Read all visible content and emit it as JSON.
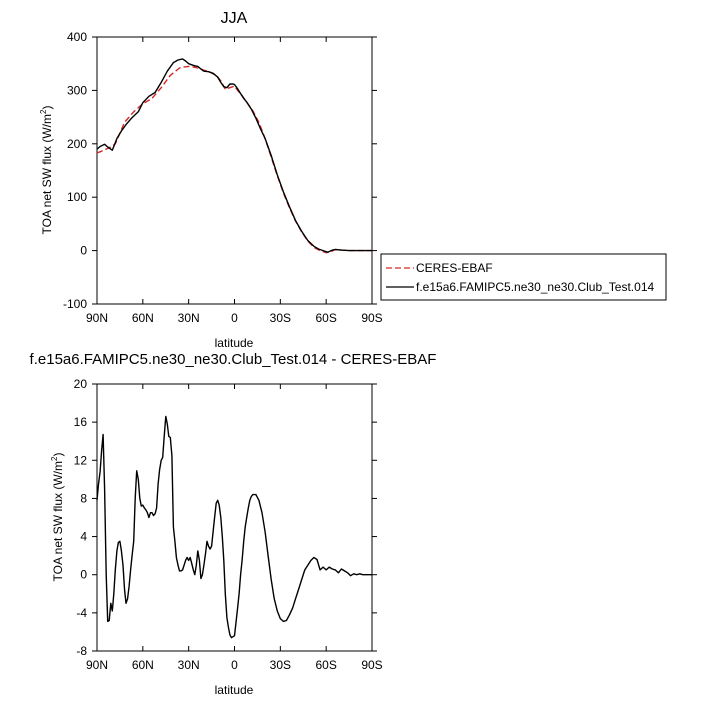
{
  "chart_data": [
    {
      "type": "line",
      "title": "JJA",
      "xlabel": "latitude",
      "ylabel_main": "TOA net SW flux (W/m",
      "ylabel_sup": "2",
      "ylabel_close": ")",
      "xlim": [
        90,
        -90
      ],
      "ylim": [
        -100,
        400
      ],
      "x_tick_values": [
        90,
        60,
        30,
        0,
        -30,
        -60,
        -90
      ],
      "x_tick_labels": [
        "90N",
        "60N",
        "30N",
        "0",
        "30S",
        "60S",
        "90S"
      ],
      "y_tick_values": [
        -100,
        0,
        100,
        200,
        300,
        400
      ],
      "y_tick_labels": [
        "-100",
        "0",
        "100",
        "200",
        "300",
        "400"
      ],
      "grid": false,
      "legend_position": "right",
      "series": [
        {
          "name": "CERES-EBAF",
          "color": "#d62728",
          "dash": true,
          "x": [
            90,
            88,
            84,
            81,
            78,
            72,
            66,
            60,
            54,
            48,
            42,
            36,
            33,
            30,
            27,
            24,
            20,
            16,
            12,
            9,
            6,
            3,
            0,
            -2,
            -5,
            -8,
            -12,
            -16,
            -20,
            -24,
            -28,
            -32,
            -36,
            -40,
            -44,
            -48,
            -52,
            -56,
            -60,
            -63,
            -66,
            -70,
            -75,
            -80,
            -85,
            -90
          ],
          "y": [
            183,
            185,
            190,
            194,
            200,
            240,
            260,
            275,
            285,
            305,
            328,
            342,
            344,
            345,
            344,
            342,
            338,
            334,
            328,
            318,
            302,
            305,
            308,
            300,
            290,
            278,
            262,
            240,
            210,
            175,
            140,
            108,
            80,
            55,
            35,
            18,
            6,
            0,
            -4,
            -2,
            2,
            1,
            0,
            0,
            0,
            0
          ]
        },
        {
          "name": "f.e15a6.FAMIPC5.ne30_ne30.Club_Test.014",
          "color": "#000000",
          "dash": false,
          "x": [
            90,
            88,
            85,
            83,
            80,
            77,
            74,
            71,
            67,
            63,
            60,
            56,
            52,
            48,
            44,
            40,
            37,
            34,
            32,
            30,
            28,
            26,
            24,
            22,
            20,
            17,
            14,
            11,
            9,
            7,
            5,
            3,
            1,
            0,
            -2,
            -4,
            -6,
            -8,
            -11,
            -14,
            -17,
            -20,
            -24,
            -28,
            -32,
            -36,
            -40,
            -44,
            -48,
            -52,
            -55,
            -58,
            -61,
            -64,
            -66,
            -70,
            -75,
            -80,
            -85,
            -90
          ],
          "y": [
            190,
            195,
            199,
            194,
            188,
            210,
            224,
            236,
            249,
            260,
            277,
            289,
            296,
            315,
            336,
            352,
            357,
            359,
            355,
            350,
            348,
            346,
            345,
            340,
            336,
            335,
            332,
            325,
            315,
            307,
            305,
            312,
            312,
            311,
            303,
            294,
            285,
            278,
            265,
            248,
            228,
            210,
            178,
            142,
            110,
            82,
            56,
            36,
            19,
            8,
            3,
            0,
            -3,
            1,
            2,
            1,
            0,
            0,
            0,
            0
          ]
        }
      ]
    },
    {
      "type": "line",
      "title": "f.e15a6.FAMIPC5.ne30_ne30.Club_Test.014 - CERES-EBAF",
      "xlabel": "latitude",
      "ylabel_main": "TOA net SW flux (W/m",
      "ylabel_sup": "2",
      "ylabel_close": ")",
      "xlim": [
        90,
        -90
      ],
      "ylim": [
        -8,
        20
      ],
      "x_tick_values": [
        90,
        60,
        30,
        0,
        -30,
        -60,
        -90
      ],
      "x_tick_labels": [
        "90N",
        "60N",
        "30N",
        "0",
        "30S",
        "60S",
        "90S"
      ],
      "y_tick_values": [
        -8,
        -4,
        0,
        4,
        8,
        12,
        16,
        20
      ],
      "y_tick_labels": [
        "-8",
        "-4",
        "0",
        "4",
        "8",
        "12",
        "16",
        "20"
      ],
      "grid": false,
      "series": [
        {
          "name": "",
          "color": "#000000",
          "dash": false,
          "x": [
            90,
            89,
            88,
            87,
            86,
            85,
            84,
            83,
            82,
            81,
            80,
            79,
            78,
            77,
            76,
            75,
            74,
            73,
            72,
            71,
            70,
            69,
            68,
            67,
            66,
            65,
            64,
            63,
            62,
            61,
            60,
            59,
            58,
            57,
            56,
            55,
            54,
            53,
            52,
            51,
            50,
            49,
            48,
            47,
            46,
            45,
            44,
            43,
            42,
            41,
            40,
            39,
            38,
            37,
            36,
            35,
            34,
            33,
            32,
            31,
            30,
            29,
            28,
            27,
            26,
            25,
            24,
            23,
            22,
            21,
            20,
            19,
            18,
            17,
            16,
            15,
            14,
            13,
            12,
            11,
            10,
            9,
            8,
            7,
            6,
            5,
            4,
            3,
            2,
            1,
            0,
            -1,
            -2,
            -3,
            -4,
            -5,
            -6,
            -7,
            -8,
            -9,
            -10,
            -11,
            -12,
            -14,
            -16,
            -18,
            -20,
            -22,
            -24,
            -26,
            -28,
            -30,
            -32,
            -34,
            -36,
            -38,
            -40,
            -42,
            -44,
            -46,
            -48,
            -50,
            -52,
            -54,
            -56,
            -58,
            -60,
            -62,
            -64,
            -66,
            -68,
            -70,
            -72,
            -74,
            -76,
            -78,
            -80,
            -82,
            -84,
            -86,
            -88,
            -90
          ],
          "y": [
            7.8,
            9.5,
            10.8,
            13.0,
            14.7,
            9.0,
            0.0,
            -4.9,
            -4.8,
            -3.0,
            -3.8,
            -2.0,
            0.5,
            2.5,
            3.4,
            3.5,
            2.5,
            1.0,
            -1.5,
            -3.0,
            -2.5,
            -1.2,
            0.5,
            2.0,
            3.5,
            8.0,
            10.9,
            10.0,
            8.0,
            7.2,
            7.3,
            7.0,
            6.8,
            6.5,
            6.0,
            6.5,
            6.5,
            6.2,
            6.4,
            7.0,
            9.5,
            11.0,
            12.0,
            12.3,
            14.5,
            16.6,
            15.8,
            14.5,
            14.4,
            12.5,
            5.0,
            3.5,
            1.8,
            1.0,
            0.4,
            0.4,
            0.5,
            1.0,
            1.5,
            1.8,
            1.5,
            1.8,
            1.2,
            0.5,
            0.0,
            1.0,
            2.5,
            1.5,
            -0.4,
            0.0,
            1.0,
            2.2,
            3.5,
            3.0,
            2.7,
            3.0,
            4.5,
            6.0,
            7.5,
            7.8,
            7.3,
            6.0,
            4.0,
            1.5,
            -2.0,
            -4.5,
            -5.5,
            -6.3,
            -6.6,
            -6.5,
            -6.4,
            -5.0,
            -3.5,
            -2.0,
            0.0,
            1.5,
            3.5,
            5.0,
            6.0,
            7.0,
            7.8,
            8.2,
            8.4,
            8.4,
            7.8,
            6.5,
            4.5,
            2.0,
            -0.5,
            -2.5,
            -3.8,
            -4.6,
            -4.9,
            -4.8,
            -4.2,
            -3.5,
            -2.5,
            -1.5,
            -0.5,
            0.5,
            1.0,
            1.5,
            1.8,
            1.6,
            0.5,
            0.8,
            0.5,
            0.8,
            0.6,
            0.5,
            0.2,
            0.6,
            0.4,
            0.2,
            -0.1,
            0.1,
            0.0,
            0.1,
            0.0,
            0.0,
            0.0,
            0.0
          ]
        }
      ]
    }
  ]
}
